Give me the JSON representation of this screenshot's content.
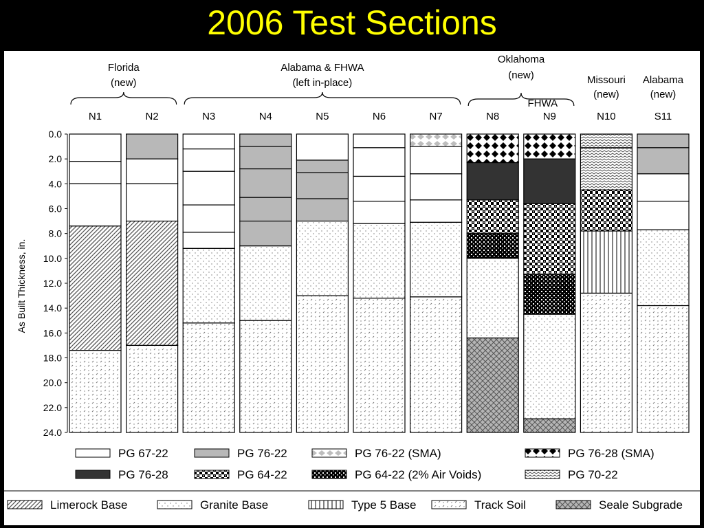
{
  "slide": {
    "title": "2006 Test Sections"
  },
  "chart_data": {
    "type": "bar",
    "subtype": "stacked",
    "ylabel": "As Built Thickness, in.",
    "y_axis": {
      "min": 0,
      "max": 24,
      "inverted": true,
      "ticks": [
        "0.0",
        "2.0",
        "4.0",
        "6.0",
        "8.0",
        "10.0",
        "12.0",
        "14.0",
        "16.0",
        "18.0",
        "20.0",
        "22.0",
        "24.0"
      ]
    },
    "categories": [
      "N1",
      "N2",
      "N3",
      "N4",
      "N5",
      "N6",
      "N7",
      "N8",
      "N9",
      "N10",
      "S11"
    ],
    "groups": [
      {
        "lines": [
          "Florida",
          "(new)"
        ],
        "from": 0,
        "to": 1
      },
      {
        "lines": [
          "Alabama & FHWA",
          "(left in-place)"
        ],
        "from": 2,
        "to": 6
      },
      {
        "lines": [
          "Oklahoma",
          "(new)"
        ],
        "from": 7,
        "to": 8
      },
      {
        "lines": [
          "FHWA"
        ],
        "from": 8,
        "to": 8
      },
      {
        "lines": [
          "Missouri",
          "(new)"
        ],
        "from": 9,
        "to": 9
      },
      {
        "lines": [
          "Alabama",
          "(new)"
        ],
        "from": 10,
        "to": 10
      }
    ],
    "materials": {
      "pg6722": {
        "name": "PG 67-22"
      },
      "pg7622": {
        "name": "PG 76-22"
      },
      "pg7622sma": {
        "name": "PG 76-22 (SMA)"
      },
      "pg7628sma": {
        "name": "PG 76-28 (SMA)"
      },
      "pg7628": {
        "name": "PG 76-28"
      },
      "pg6422": {
        "name": "PG 64-22"
      },
      "pg6422av": {
        "name": "PG 64-22 (2% Air Voids)"
      },
      "pg7022": {
        "name": "PG 70-22"
      },
      "limerock": {
        "name": "Limerock Base"
      },
      "granite": {
        "name": "Granite Base"
      },
      "type5": {
        "name": "Type 5 Base"
      },
      "tracksoil": {
        "name": "Track Soil"
      },
      "seale": {
        "name": "Seale Subgrade"
      }
    },
    "legend_rows": [
      [
        "pg6722",
        "pg7622",
        "pg7622sma",
        "pg7628sma"
      ],
      [
        "pg7628",
        "pg6422",
        "pg6422av",
        "pg7022"
      ],
      [
        "limerock",
        "granite",
        "type5",
        "tracksoil",
        "seale"
      ]
    ],
    "sections": [
      {
        "name": "N1",
        "layers": [
          [
            "pg6722",
            2.2
          ],
          [
            "pg6722",
            1.8
          ],
          [
            "pg6722",
            3.4
          ],
          [
            "limerock",
            10.0
          ],
          [
            "tracksoil",
            6.6
          ]
        ]
      },
      {
        "name": "N2",
        "layers": [
          [
            "pg7622",
            2.0
          ],
          [
            "pg6722",
            2.0
          ],
          [
            "pg6722",
            3.0
          ],
          [
            "limerock",
            10.0
          ],
          [
            "tracksoil",
            7.0
          ]
        ]
      },
      {
        "name": "N3",
        "layers": [
          [
            "pg6722",
            1.2
          ],
          [
            "pg6722",
            1.8
          ],
          [
            "pg6722",
            2.7
          ],
          [
            "pg6722",
            2.2
          ],
          [
            "pg6722",
            1.3
          ],
          [
            "granite",
            6.0
          ],
          [
            "tracksoil",
            8.8
          ]
        ]
      },
      {
        "name": "N4",
        "layers": [
          [
            "pg7622",
            1.0
          ],
          [
            "pg7622",
            1.8
          ],
          [
            "pg7622",
            2.3
          ],
          [
            "pg7622",
            1.9
          ],
          [
            "pg7622",
            2.0
          ],
          [
            "granite",
            6.0
          ],
          [
            "tracksoil",
            9.0
          ]
        ]
      },
      {
        "name": "N5",
        "layers": [
          [
            "pg6722",
            2.1
          ],
          [
            "pg7622",
            1.0
          ],
          [
            "pg7622",
            2.1
          ],
          [
            "pg7622",
            1.8
          ],
          [
            "granite",
            6.0
          ],
          [
            "tracksoil",
            11.0
          ]
        ]
      },
      {
        "name": "N6",
        "layers": [
          [
            "pg6722",
            1.1
          ],
          [
            "pg6722",
            2.3
          ],
          [
            "pg6722",
            2.0
          ],
          [
            "pg6722",
            1.8
          ],
          [
            "granite",
            6.0
          ],
          [
            "tracksoil",
            10.8
          ]
        ]
      },
      {
        "name": "N7",
        "layers": [
          [
            "pg7622sma",
            1.0
          ],
          [
            "pg6722",
            2.2
          ],
          [
            "pg6722",
            2.1
          ],
          [
            "pg6722",
            1.8
          ],
          [
            "granite",
            6.0
          ],
          [
            "tracksoil",
            10.9
          ]
        ]
      },
      {
        "name": "N8",
        "layers": [
          [
            "pg7628sma",
            2.3
          ],
          [
            "pg7628",
            3.0
          ],
          [
            "pg6422",
            2.7
          ],
          [
            "pg6422av",
            2.0
          ],
          [
            "granite",
            6.4
          ],
          [
            "seale",
            7.6
          ]
        ]
      },
      {
        "name": "N9",
        "layers": [
          [
            "pg7628sma",
            2.0
          ],
          [
            "pg7628",
            3.6
          ],
          [
            "pg6422",
            5.7
          ],
          [
            "pg6422av",
            3.2
          ],
          [
            "granite",
            8.4
          ],
          [
            "seale",
            1.1
          ]
        ]
      },
      {
        "name": "N10",
        "layers": [
          [
            "pg7022",
            1.1
          ],
          [
            "pg7022",
            3.4
          ],
          [
            "pg6422",
            3.3
          ],
          [
            "type5",
            5.0
          ],
          [
            "tracksoil",
            11.2
          ]
        ]
      },
      {
        "name": "S11",
        "layers": [
          [
            "pg7622",
            1.1
          ],
          [
            "pg7622",
            2.1
          ],
          [
            "pg6722",
            2.2
          ],
          [
            "pg6722",
            2.3
          ],
          [
            "granite",
            6.1
          ],
          [
            "tracksoil",
            10.2
          ]
        ]
      }
    ]
  }
}
